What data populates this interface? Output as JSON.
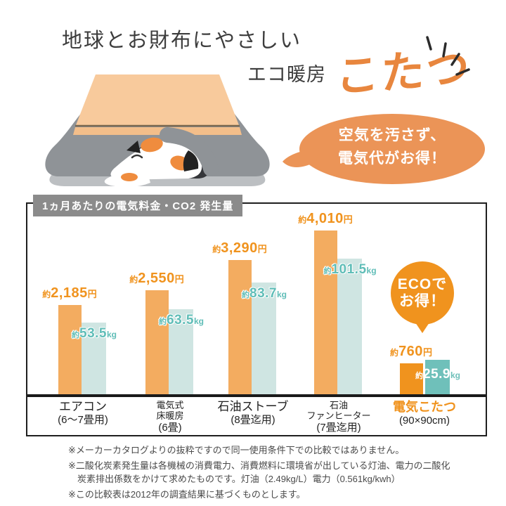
{
  "header": {
    "title": "地球とお財布にやさしい",
    "subtitle_prefix": "エコ暖房",
    "subtitle_main": "こたつ"
  },
  "bubble": {
    "line1": "空気を汚さず、",
    "line2": "電気代がお得！"
  },
  "eco_badge": {
    "line1": "ECOで",
    "line2": "お得！"
  },
  "chart_header": "1ヵ月あたりの電気料金・CO2 発生量",
  "chart_data": {
    "type": "bar",
    "title": "1ヵ月あたりの電気料金・CO2発生量",
    "legend": "none",
    "grid": false,
    "categories": [
      [
        "エアコン",
        "(6〜7畳用)"
      ],
      [
        "電気式",
        "床暖房",
        "(6畳)"
      ],
      [
        "石油ストーブ",
        "(8畳迄用)"
      ],
      [
        "石油",
        "ファンヒーター",
        "(7畳迄用)"
      ],
      [
        "電気こたつ",
        "(90×90cm)"
      ]
    ],
    "highlight_index": 4,
    "series": [
      {
        "name": "電気料金（円/月）",
        "unit": "円",
        "prefix": "約",
        "values": [
          2185,
          2550,
          3290,
          4010,
          760
        ],
        "amount_labels": [
          "2,185",
          "2,550",
          "3,290",
          "4,010",
          "760"
        ],
        "ylim": [
          0,
          4010
        ]
      },
      {
        "name": "CO2発生量（kg/月）",
        "unit": "kg",
        "prefix": "約",
        "values": [
          53.5,
          63.5,
          83.7,
          101.5,
          25.9
        ],
        "amount_labels": [
          "53.5",
          "63.5",
          "83.7",
          "101.5",
          "25.9"
        ],
        "ylim": [
          0,
          101.5
        ]
      }
    ]
  },
  "footnotes": [
    "※メーカーカタログよりの抜粋ですので同一使用条件下での比較ではありません。",
    "※二酸化炭素発生量は各機械の消費電力、消費燃料に環境省が出している灯油、電力の二酸化炭素排出係数をかけて求めたものです。灯油（2.49kg/L）電力（0.561kg/kwh）",
    "※この比較表は2012年の調査結果に基づくものとします。"
  ],
  "colors": {
    "orange_strong": "#F0931E",
    "orange_muted": "#F3AC60",
    "orange_title": "#E8863E",
    "bubble": "#EB9457",
    "teal_muted": "#CFE5E2",
    "teal_strong": "#6FC0BA",
    "teal_text": "#5FBDB7",
    "gray_chip": "#8B8B8B",
    "footnote": "#4A4A4A"
  }
}
